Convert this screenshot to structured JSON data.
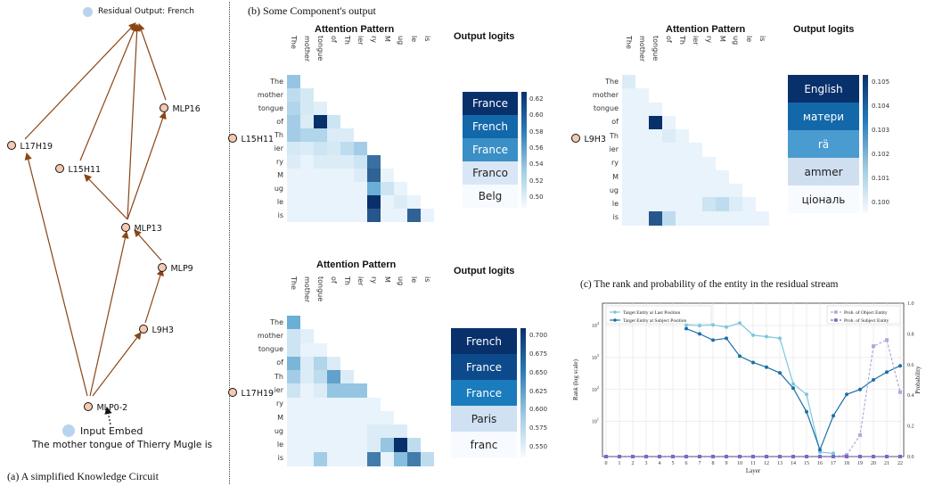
{
  "circuit": {
    "caption": "(a)  A simplified Knowledge Circuit",
    "legend_output": "Residual Output: French",
    "input_label": "Input Embed",
    "input_sentence": "The mother tongue of Thierry Mugle is",
    "nodes": {
      "mlp16": "MLP16",
      "l17h19": "L17H19",
      "l15h11": "L15H11",
      "mlp13": "MLP13",
      "mlp9": "MLP9",
      "l9h3": "L9H3",
      "mlp0_2": "MLP0-2"
    },
    "colors": {
      "edge": "#8b4513",
      "node_fill": "#f6c9b0",
      "legend_dot": "#b8d3ee"
    }
  },
  "component_caption": "(b)  Some Component's output",
  "tokens": [
    "The",
    "mother",
    "tongue",
    "of",
    "Th",
    "ier",
    "ry",
    "M",
    "ug",
    "le",
    "is"
  ],
  "panels": [
    {
      "head": "L15H11",
      "attn_title": "Attention Pattern",
      "logit_title": "Output logits",
      "logits": [
        "France",
        "French",
        "France",
        "Franco",
        "Belg"
      ],
      "cbar_ticks": [
        "0.62",
        "0.60",
        "0.58",
        "0.56",
        "0.54",
        "0.52",
        "0.50"
      ],
      "attention": [
        [
          0.35
        ],
        [
          0.2,
          0.12
        ],
        [
          0.25,
          0.12,
          0.08
        ],
        [
          0.3,
          0.1,
          1.0,
          0.15
        ],
        [
          0.3,
          0.25,
          0.25,
          0.1,
          0.1
        ],
        [
          0.12,
          0.1,
          0.15,
          0.12,
          0.2,
          0.3
        ],
        [
          0.1,
          0.05,
          0.1,
          0.1,
          0.1,
          0.15,
          0.75
        ],
        [
          0.05,
          0.05,
          0.05,
          0.05,
          0.05,
          0.1,
          0.8,
          0.05
        ],
        [
          0.05,
          0.05,
          0.05,
          0.05,
          0.05,
          0.05,
          0.5,
          0.15,
          0.05
        ],
        [
          0.05,
          0.05,
          0.05,
          0.05,
          0.05,
          0.05,
          1.0,
          0.05,
          0.1,
          0.05
        ],
        [
          0.05,
          0.05,
          0.05,
          0.05,
          0.05,
          0.05,
          0.85,
          0.05,
          0.05,
          0.8,
          0.05
        ]
      ]
    },
    {
      "head": "L9H3",
      "attn_title": "Attention Pattern",
      "logit_title": "Output logits",
      "logits": [
        "English",
        "матери",
        "rä",
        "ammer",
        "ціональ"
      ],
      "cbar_ticks": [
        "0.105",
        "0.104",
        "0.103",
        "0.102",
        "0.101",
        "0.100"
      ],
      "attention": [
        [
          0.1
        ],
        [
          0.05,
          0.05
        ],
        [
          0.05,
          0.05,
          0.05
        ],
        [
          0.05,
          0.05,
          1.0,
          0.05
        ],
        [
          0.05,
          0.05,
          0.05,
          0.1,
          0.05
        ],
        [
          0.05,
          0.05,
          0.05,
          0.05,
          0.05,
          0.05
        ],
        [
          0.05,
          0.05,
          0.05,
          0.05,
          0.05,
          0.05,
          0.05
        ],
        [
          0.05,
          0.05,
          0.05,
          0.05,
          0.05,
          0.05,
          0.05,
          0.05
        ],
        [
          0.05,
          0.05,
          0.05,
          0.05,
          0.05,
          0.05,
          0.05,
          0.05,
          0.05
        ],
        [
          0.05,
          0.05,
          0.05,
          0.05,
          0.05,
          0.05,
          0.15,
          0.2,
          0.1,
          0.05
        ],
        [
          0.05,
          0.05,
          0.85,
          0.2,
          0.05,
          0.05,
          0.05,
          0.05,
          0.05,
          0.05,
          0.05
        ]
      ]
    },
    {
      "head": "L17H19",
      "attn_title": "Attention Pattern",
      "logit_title": "Output logits",
      "logits": [
        "French",
        "France",
        "France",
        "Paris",
        "franc"
      ],
      "cbar_ticks": [
        "0.700",
        "0.675",
        "0.650",
        "0.625",
        "0.600",
        "0.575",
        "0.550"
      ],
      "attention": [
        [
          0.5
        ],
        [
          0.15,
          0.08
        ],
        [
          0.15,
          0.05,
          0.05
        ],
        [
          0.45,
          0.1,
          0.25,
          0.1
        ],
        [
          0.3,
          0.1,
          0.2,
          0.55,
          0.1
        ],
        [
          0.15,
          0.05,
          0.1,
          0.35,
          0.35,
          0.35
        ],
        [
          0.05,
          0.05,
          0.05,
          0.05,
          0.05,
          0.05,
          0.05
        ],
        [
          0.05,
          0.05,
          0.05,
          0.05,
          0.05,
          0.05,
          0.05,
          0.05
        ],
        [
          0.05,
          0.05,
          0.05,
          0.05,
          0.05,
          0.05,
          0.1,
          0.1,
          0.1
        ],
        [
          0.05,
          0.05,
          0.05,
          0.05,
          0.05,
          0.05,
          0.1,
          0.35,
          1.0,
          0.2
        ],
        [
          0.05,
          0.05,
          0.3,
          0.05,
          0.05,
          0.05,
          0.7,
          0.05,
          0.4,
          0.7,
          0.2
        ]
      ]
    }
  ],
  "logit_colors": [
    [
      "#08306b",
      "#1368aa",
      "#3a8fc6",
      "#d9e6f5",
      "#f7fbff"
    ],
    [
      "#08306b",
      "#1368aa",
      "#4a9bd0",
      "#cfdff0",
      "#f7fbff"
    ],
    [
      "#08306b",
      "#0d4a8c",
      "#1a7bbd",
      "#cfe1f2",
      "#f7fbff"
    ]
  ],
  "logit_text_colors": [
    [
      "#ffffff",
      "#ffffff",
      "#ffffff",
      "#222222",
      "#222222"
    ],
    [
      "#ffffff",
      "#ffffff",
      "#ffffff",
      "#222222",
      "#222222"
    ],
    [
      "#ffffff",
      "#ffffff",
      "#ffffff",
      "#222222",
      "#222222"
    ]
  ],
  "chart_data": {
    "type": "line",
    "title": "(c) The rank and probability of the entity in the residual stream",
    "xlabel": "Layer",
    "ylabel": "Rank (log scale)",
    "y2label": "Probability",
    "x": [
      0,
      1,
      2,
      3,
      4,
      5,
      6,
      7,
      8,
      9,
      10,
      11,
      12,
      13,
      14,
      15,
      16,
      17,
      18,
      19,
      20,
      21,
      22
    ],
    "y_ticks": [
      "10^4",
      "10^3",
      "10^2",
      "10^1"
    ],
    "y2_ticks": [
      "0.0",
      "0.2",
      "0.4",
      "0.6",
      "0.8",
      "1.0"
    ],
    "y2lim": [
      0,
      1.0
    ],
    "grid": true,
    "legend_left": "upper-left",
    "legend_right": "upper-right",
    "series": [
      {
        "name": "Target Entity at Last Position",
        "axis": "left",
        "style": "solid",
        "color": "#7cc6df",
        "x": [
          6,
          7,
          8,
          9,
          10,
          11,
          12,
          13,
          14,
          15,
          16,
          17
        ],
        "values": [
          10500,
          10000,
          10500,
          9000,
          12000,
          5000,
          4500,
          4000,
          150,
          70,
          1.1,
          1.0
        ]
      },
      {
        "name": "Target Entity at Subject Position",
        "axis": "left",
        "style": "solid",
        "color": "#1b6fa8",
        "x": [
          6,
          7,
          8,
          9,
          10,
          11,
          12,
          13,
          14,
          15,
          16,
          17,
          18,
          19,
          20,
          21,
          22
        ],
        "values": [
          8000,
          5500,
          3500,
          4000,
          1100,
          700,
          500,
          330,
          110,
          20,
          1.3,
          15,
          70,
          100,
          200,
          350,
          550
        ]
      },
      {
        "name": "Prob. of Object Entity",
        "axis": "right",
        "style": "dashed",
        "color": "#b3a6dd",
        "x": [
          0,
          1,
          2,
          3,
          4,
          5,
          6,
          7,
          8,
          9,
          10,
          11,
          12,
          13,
          14,
          15,
          16,
          17,
          18,
          19,
          20,
          21,
          22
        ],
        "values": [
          0,
          0,
          0,
          0,
          0,
          0,
          0,
          0,
          0,
          0,
          0,
          0,
          0,
          0,
          0,
          0,
          0,
          0,
          0.01,
          0.14,
          0.72,
          0.76,
          0.42
        ]
      },
      {
        "name": "Prob. of Subject Entity",
        "axis": "right",
        "style": "dashed",
        "color": "#7b68c4",
        "x": [
          0,
          1,
          2,
          3,
          4,
          5,
          6,
          7,
          8,
          9,
          10,
          11,
          12,
          13,
          14,
          15,
          16,
          17,
          18,
          19,
          20,
          21,
          22
        ],
        "values": [
          0,
          0,
          0,
          0,
          0,
          0,
          0,
          0,
          0,
          0,
          0,
          0,
          0,
          0,
          0,
          0,
          0,
          0,
          0,
          0,
          0,
          0,
          0
        ]
      }
    ]
  }
}
